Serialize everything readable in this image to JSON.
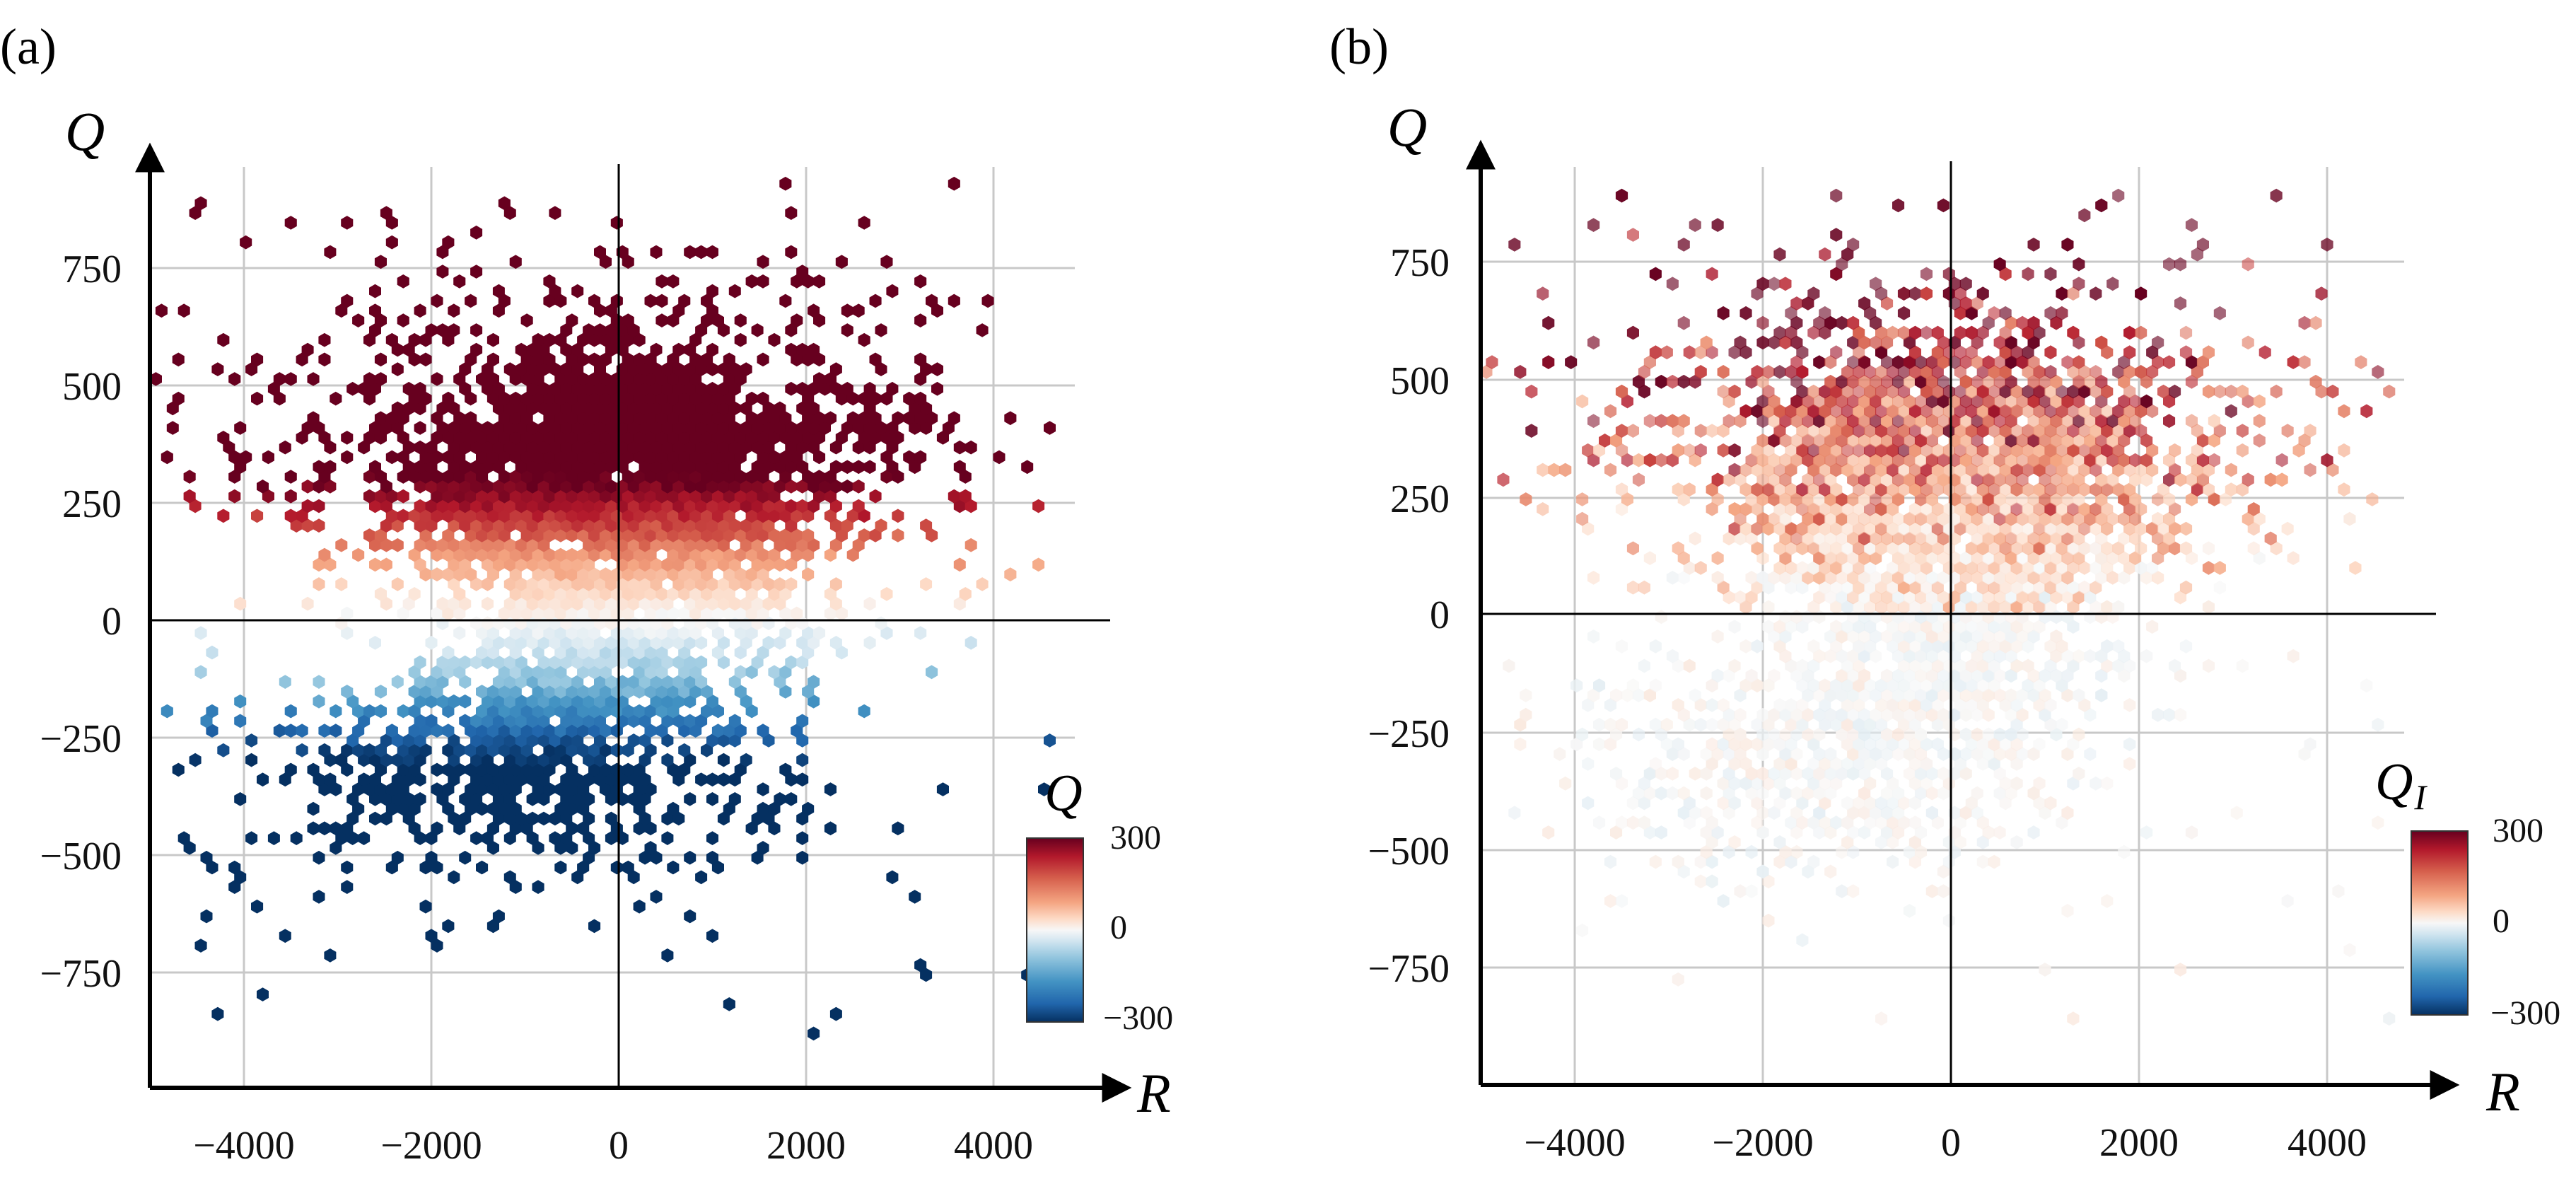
{
  "chart_data": [
    {
      "type": "heatmap",
      "panel_label": "(a)",
      "xlabel": "R",
      "ylabel": "Q",
      "xlim": [
        -5000,
        4800
      ],
      "ylim": [
        -1000,
        960
      ],
      "xticks": [
        -4000,
        -2000,
        0,
        2000,
        4000
      ],
      "yticks": [
        -750,
        -500,
        -250,
        0,
        250,
        500,
        750
      ],
      "xtick_labels": [
        "−4000",
        "−2000",
        "0",
        "2000",
        "4000"
      ],
      "ytick_labels": [
        "−750",
        "−500",
        "−250",
        "0",
        "250",
        "500",
        "750"
      ],
      "grid": true,
      "colorbar": {
        "title": "Q",
        "title_sub": "",
        "min": -300,
        "max": 300,
        "ticks": [
          "300",
          "0",
          "−300"
        ],
        "placement": "lower-right"
      },
      "colormap": [
        "#053061",
        "#2166ac",
        "#4393c3",
        "#92c5de",
        "#d1e5f0",
        "#f7f7f7",
        "#fddbc7",
        "#f4a582",
        "#d6604d",
        "#b2182b",
        "#67001f"
      ],
      "color_variable": "Q (saturates at ±300)",
      "distribution": "hexbin of (R, Q); dense core spanning R ≈ −2500…2500, Q ≈ −450…650, sparse outliers out to R ≈ ±4700"
    },
    {
      "type": "heatmap",
      "panel_label": "(b)",
      "xlabel": "R",
      "ylabel": "Q",
      "xlim": [
        -5000,
        4800
      ],
      "ylim": [
        -1000,
        960
      ],
      "xticks": [
        -4000,
        -2000,
        0,
        2000,
        4000
      ],
      "yticks": [
        -750,
        -500,
        -250,
        0,
        250,
        500,
        750
      ],
      "xtick_labels": [
        "−4000",
        "−2000",
        "0",
        "2000",
        "4000"
      ],
      "ytick_labels": [
        "−750",
        "−500",
        "−250",
        "0",
        "250",
        "500",
        "750"
      ],
      "grid": true,
      "colorbar": {
        "title": "Q",
        "title_sub": "I",
        "min": -300,
        "max": 300,
        "ticks": [
          "300",
          "0",
          "−300"
        ],
        "placement": "lower-right"
      },
      "colormap": [
        "#053061",
        "#2166ac",
        "#4393c3",
        "#92c5de",
        "#d1e5f0",
        "#f7f7f7",
        "#fddbc7",
        "#f4a582",
        "#d6604d",
        "#b2182b",
        "#67001f"
      ],
      "color_variable": "Q_I (mostly weak positive above Q = 0, near-zero below)",
      "distribution": "same (R, Q) hexbin support as panel (a)"
    }
  ]
}
